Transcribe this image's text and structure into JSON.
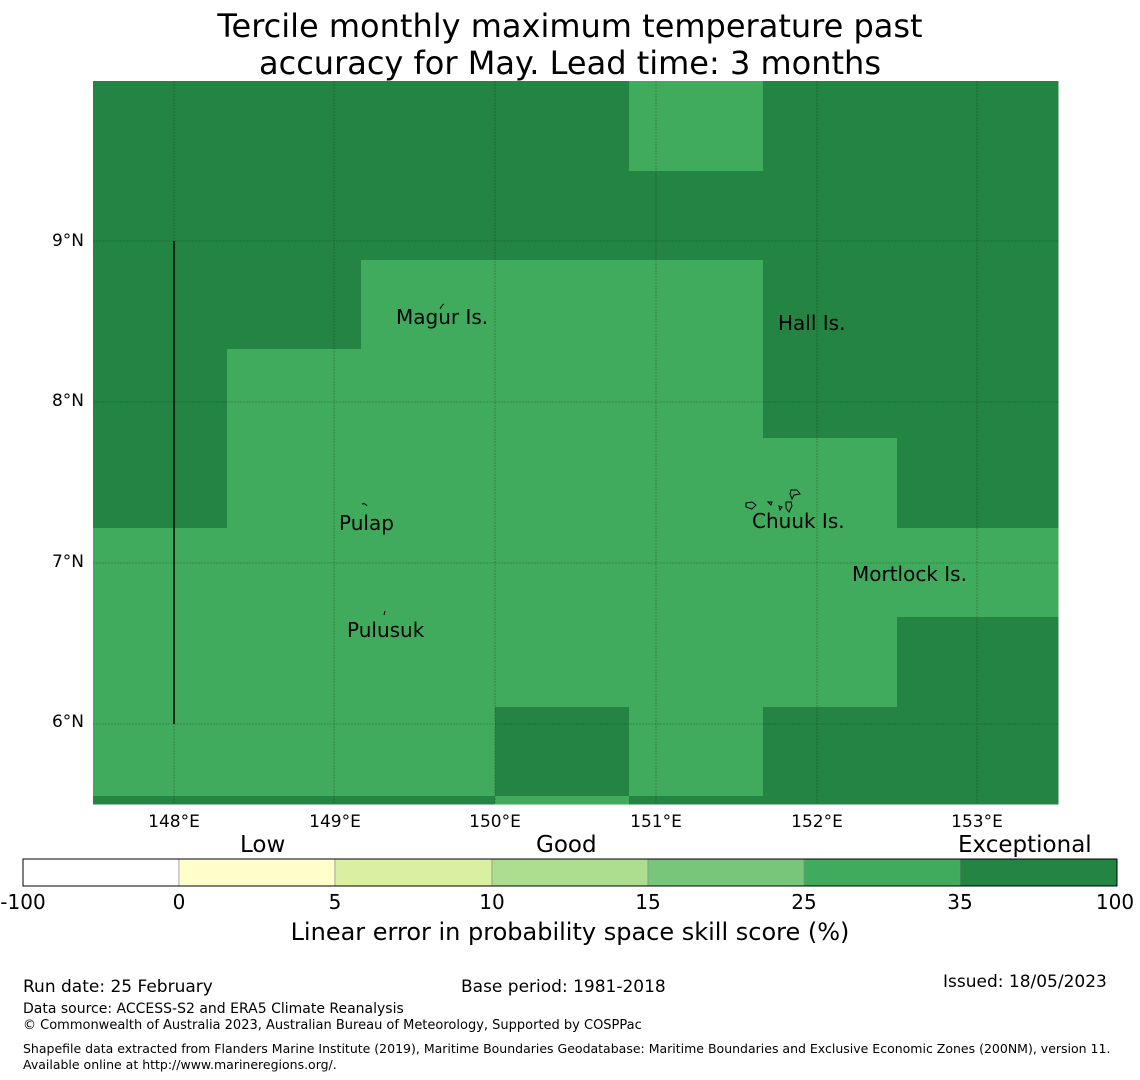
{
  "title": {
    "line1": "Tercile monthly maximum temperature past",
    "line2": "accuracy for May. Lead time: 3 months"
  },
  "map": {
    "lat_ticks": [
      "9°N",
      "8°N",
      "7°N",
      "6°N"
    ],
    "lon_ticks": [
      "148°E",
      "149°E",
      "150°E",
      "151°E",
      "152°E",
      "153°E"
    ],
    "place_labels": [
      "Magur Is.",
      "Hall Is.",
      "Pulap",
      "Chuuk Is.",
      "Mortlock Is.",
      "Pulusuk"
    ],
    "colors": {
      "exceptional_cell": "#238443",
      "good_cell": "#41ab5d"
    }
  },
  "colorbar": {
    "categories": [
      "Low",
      "Good",
      "Exceptional"
    ],
    "ticks": [
      "-100",
      "0",
      "5",
      "10",
      "15",
      "25",
      "35",
      "100"
    ],
    "colors": [
      "#ffffff",
      "#ffffcc",
      "#d9f0a3",
      "#addd8e",
      "#78c679",
      "#41ab5d",
      "#238443"
    ],
    "label": "Linear error in probability space skill score (%)"
  },
  "footer": {
    "run_date": "Run date: 25 February",
    "base_period": "Base period: 1981-2018",
    "issued": "Issued: 18/05/2023",
    "data_source": "Data source: ACCESS-S2 and ERA5 Climate Reanalysis",
    "copyright": "© Commonwealth of Australia 2023, Australian Bureau of Meteorology, Supported by COSPPac",
    "shapefile": "Shapefile data extracted from Flanders Marine Institute (2019), Maritime Boundaries Geodatabase: Maritime Boundaries and Exclusive Economic Zones (200NM), version 11. Available online at http://www.marineregions.org/."
  }
}
